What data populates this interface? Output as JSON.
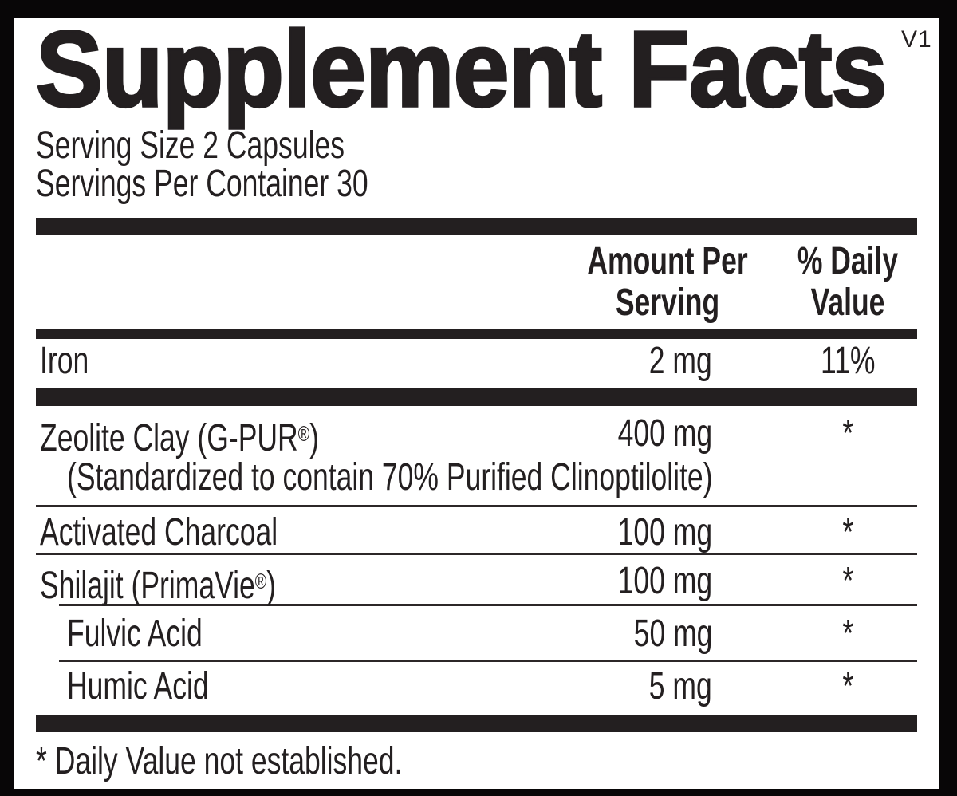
{
  "label": {
    "version_tag": "V1",
    "title": "Supplement Facts",
    "serving_size": "Serving Size 2 Capsules",
    "servings_per_container": "Servings Per Container 30",
    "header": {
      "amount_line1": "Amount Per",
      "amount_line2": "Serving",
      "dv_line1": "% Daily",
      "dv_line2": "Value"
    },
    "rows": [
      {
        "name": "Iron",
        "amount": "2 mg",
        "dv": "11%"
      },
      {
        "name": "Zeolite Clay (G-PUR®)",
        "detail": "(Standardized to contain 70% Purified Clinoptilolite)",
        "amount": "400 mg",
        "dv": "*"
      },
      {
        "name": "Activated Charcoal",
        "amount": "100 mg",
        "dv": "*"
      },
      {
        "name": "Shilajit (PrimaVie®)",
        "amount": "100 mg",
        "dv": "*"
      },
      {
        "name": "Fulvic Acid",
        "amount": "50 mg",
        "dv": "*"
      },
      {
        "name": "Humic Acid",
        "amount": "5 mg",
        "dv": "*"
      }
    ],
    "footnote": "* Daily Value not established.",
    "colors": {
      "ink": "#231f20",
      "panel": "#ffffff",
      "background": "#080607"
    }
  }
}
